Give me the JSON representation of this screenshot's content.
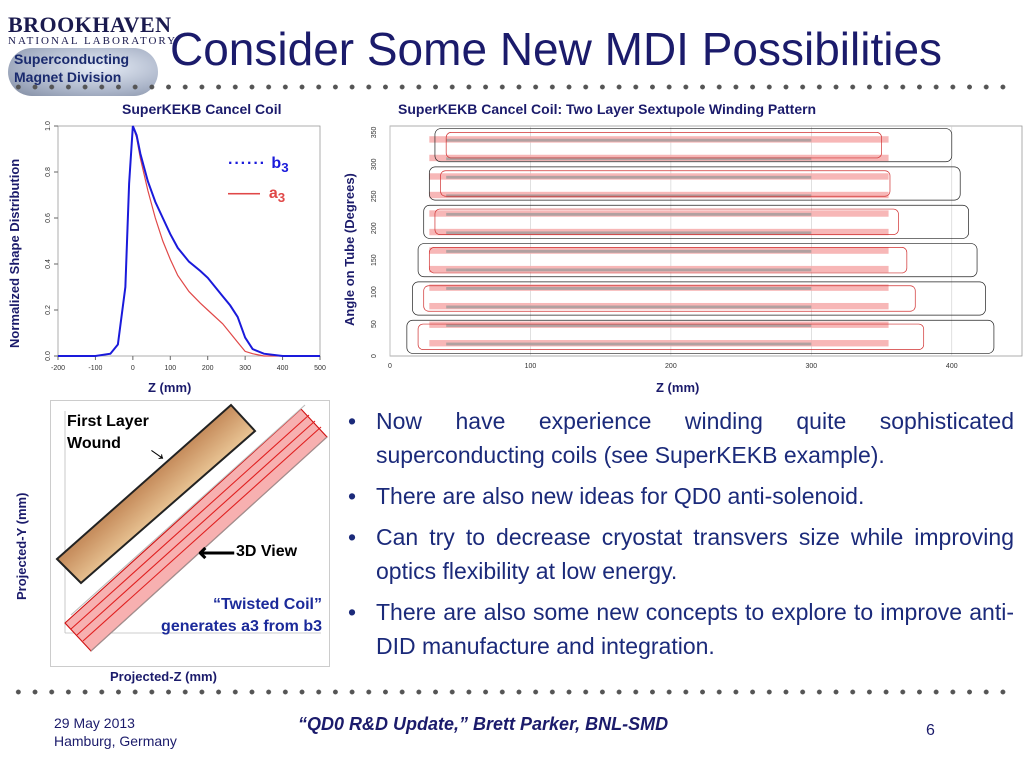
{
  "header": {
    "logo_line1": "BROOKHAVEN",
    "logo_line2": "NATIONAL LABORATORY",
    "badge_line1": "Superconducting",
    "badge_line2": "Magnet Division",
    "title": "Consider Some New MDI Possibilities"
  },
  "left_chart": {
    "title": "SuperKEKB Cancel Coil",
    "legend_b3": "b",
    "legend_b3_sub": "3",
    "legend_a3": "a",
    "legend_a3_sub": "3",
    "colors": {
      "b3": "#1a1adb",
      "a3": "#e04848"
    }
  },
  "right_chart": {
    "title": "SuperKEKB Cancel Coil: Two Layer Sextupole Winding Pattern"
  },
  "coil3d": {
    "first_layer": "First Layer",
    "wound": "Wound",
    "view3d": "3D View",
    "twisted_line1": "“Twisted Coil”",
    "twisted_line2": "generates a3 from b3",
    "ylabel": "Projected-Y (mm)",
    "xlabel": "Projected-Z (mm)"
  },
  "chart_data": [
    {
      "type": "line",
      "title": "SuperKEKB Cancel Coil",
      "xlabel": "Z (mm)",
      "ylabel": "Normalized Shape Distribution",
      "xlim": [
        -200,
        500
      ],
      "ylim": [
        0,
        1.0
      ],
      "x_ticks": [
        "-200",
        "-100",
        "0",
        "100",
        "200",
        "300",
        "400",
        "500"
      ],
      "y_ticks": [
        "0.0",
        "0.2",
        "0.4",
        "0.6",
        "0.8",
        "1.0"
      ],
      "series": [
        {
          "name": "b3",
          "x": [
            -200,
            -100,
            -60,
            -40,
            -20,
            -10,
            0,
            10,
            20,
            40,
            60,
            80,
            100,
            120,
            150,
            180,
            200,
            240,
            260,
            280,
            300,
            320,
            350,
            400,
            500
          ],
          "y": [
            0,
            0,
            0.01,
            0.05,
            0.3,
            0.75,
            1.0,
            0.96,
            0.88,
            0.76,
            0.67,
            0.6,
            0.53,
            0.47,
            0.41,
            0.37,
            0.34,
            0.26,
            0.22,
            0.17,
            0.08,
            0.03,
            0.01,
            0,
            0
          ]
        },
        {
          "name": "a3",
          "x": [
            -200,
            -100,
            -60,
            -40,
            -20,
            -10,
            0,
            10,
            20,
            40,
            60,
            80,
            100,
            120,
            150,
            180,
            200,
            240,
            260,
            280,
            300,
            320,
            350,
            400,
            500
          ],
          "y": [
            0,
            0,
            0.01,
            0.05,
            0.3,
            0.75,
            1.0,
            0.95,
            0.86,
            0.72,
            0.6,
            0.5,
            0.42,
            0.35,
            0.28,
            0.23,
            0.2,
            0.14,
            0.1,
            0.06,
            0.02,
            0.01,
            0,
            0,
            0
          ]
        }
      ]
    },
    {
      "type": "line",
      "title": "SuperKEKB Cancel Coil: Two Layer Sextupole Winding Pattern",
      "xlabel": "Z (mm)",
      "ylabel": "Angle on Tube (Degrees)",
      "xlim": [
        0,
        450
      ],
      "ylim": [
        0,
        360
      ],
      "x_ticks": [
        "0",
        "100",
        "200",
        "300",
        "400"
      ],
      "y_ticks": [
        "0",
        "50",
        "100",
        "150",
        "200",
        "250",
        "300",
        "350"
      ]
    }
  ],
  "bullets": [
    "Now have experience winding quite sophisticated superconducting coils (see SuperKEKB example).",
    "There are also new ideas for QD0 anti-solenoid.",
    "Can try to decrease cryostat transvers size while improving optics flexibility at low energy.",
    "There are also some new concepts to explore to improve anti-DID manufacture and integration."
  ],
  "footer": {
    "date": "29 May 2013",
    "place": "Hamburg, Germany",
    "center": "“QD0 R&D Update,” Brett Parker, BNL-SMD",
    "page": "6"
  }
}
